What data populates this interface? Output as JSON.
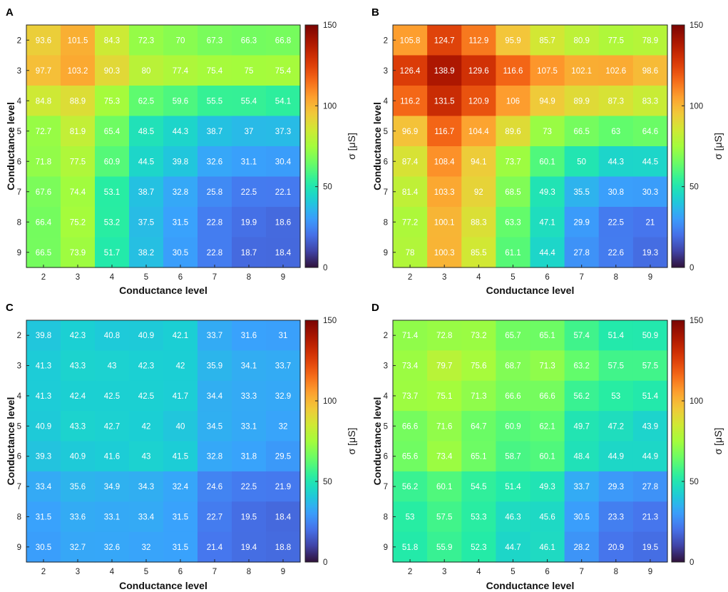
{
  "chart_data": [
    {
      "panel": "A",
      "type": "heatmap",
      "x_categories": [
        "2",
        "3",
        "4",
        "5",
        "6",
        "7",
        "8",
        "9"
      ],
      "y_categories": [
        "2",
        "3",
        "4",
        "5",
        "6",
        "7",
        "8",
        "9"
      ],
      "xlabel": "Conductance level",
      "ylabel": "Conductance level",
      "colorbar_label": "σ [μS]",
      "color_range": [
        0,
        150
      ],
      "colorbar_ticks": [
        0,
        50,
        100,
        150
      ],
      "values": [
        [
          93.6,
          101.5,
          84.3,
          72.3,
          70,
          67.3,
          66.3,
          66.8
        ],
        [
          97.7,
          103.2,
          90.3,
          80,
          77.4,
          75.4,
          75,
          75.4
        ],
        [
          84.8,
          88.9,
          75.3,
          62.5,
          59.6,
          55.5,
          55.4,
          54.1
        ],
        [
          72.7,
          81.9,
          65.4,
          48.5,
          44.3,
          38.7,
          37,
          37.3
        ],
        [
          71.8,
          77.5,
          60.9,
          44.5,
          39.8,
          32.6,
          31.1,
          30.4
        ],
        [
          67.6,
          74.4,
          53.1,
          38.7,
          32.8,
          25.8,
          22.5,
          22.1
        ],
        [
          66.4,
          75.2,
          53.2,
          37.5,
          31.5,
          22.8,
          19.9,
          18.6
        ],
        [
          66.5,
          73.9,
          51.7,
          38.2,
          30.5,
          22.8,
          18.7,
          18.4
        ]
      ]
    },
    {
      "panel": "B",
      "type": "heatmap",
      "x_categories": [
        "2",
        "3",
        "4",
        "5",
        "6",
        "7",
        "8",
        "9"
      ],
      "y_categories": [
        "2",
        "3",
        "4",
        "5",
        "6",
        "7",
        "8",
        "9"
      ],
      "xlabel": "Conductance level",
      "ylabel": "Conductance level",
      "colorbar_label": "σ [μS]",
      "color_range": [
        0,
        150
      ],
      "colorbar_ticks": [
        0,
        50,
        100,
        150
      ],
      "values": [
        [
          105.8,
          124.7,
          112.9,
          95.9,
          85.7,
          80.9,
          77.5,
          78.9
        ],
        [
          126.4,
          138.9,
          129.6,
          116.6,
          107.5,
          102.1,
          102.6,
          98.6
        ],
        [
          116.2,
          131.5,
          120.9,
          106,
          94.9,
          89.9,
          87.3,
          83.3
        ],
        [
          96.9,
          116.7,
          104.4,
          89.6,
          73,
          66.5,
          63,
          64.6
        ],
        [
          87.4,
          108.4,
          94.1,
          73.7,
          60.1,
          50,
          44.3,
          44.5
        ],
        [
          81.4,
          103.3,
          92,
          68.5,
          49.3,
          35.5,
          30.8,
          30.3
        ],
        [
          77.2,
          100.1,
          88.3,
          63.3,
          47.1,
          29.9,
          22.5,
          21
        ],
        [
          78,
          100.3,
          85.5,
          61.1,
          44.4,
          27.8,
          22.6,
          19.3
        ]
      ]
    },
    {
      "panel": "C",
      "type": "heatmap",
      "x_categories": [
        "2",
        "3",
        "4",
        "5",
        "6",
        "7",
        "8",
        "9"
      ],
      "y_categories": [
        "2",
        "3",
        "4",
        "5",
        "6",
        "7",
        "8",
        "9"
      ],
      "xlabel": "Conductance level",
      "ylabel": "Conductance level",
      "colorbar_label": "σ [μS]",
      "color_range": [
        0,
        150
      ],
      "colorbar_ticks": [
        0,
        50,
        100,
        150
      ],
      "values": [
        [
          39.8,
          42.3,
          40.8,
          40.9,
          42.1,
          33.7,
          31.6,
          31
        ],
        [
          41.3,
          43.3,
          43,
          42.3,
          42,
          35.9,
          34.1,
          33.7
        ],
        [
          41.3,
          42.4,
          42.5,
          42.5,
          41.7,
          34.4,
          33.3,
          32.9
        ],
        [
          40.9,
          43.3,
          42.7,
          42,
          40,
          34.5,
          33.1,
          32
        ],
        [
          39.3,
          40.9,
          41.6,
          43,
          41.5,
          32.8,
          31.8,
          29.5
        ],
        [
          33.4,
          35.6,
          34.9,
          34.3,
          32.4,
          24.6,
          22.5,
          21.9
        ],
        [
          31.5,
          33.6,
          33.1,
          33.4,
          31.5,
          22.7,
          19.5,
          18.4
        ],
        [
          30.5,
          32.7,
          32.6,
          32,
          31.5,
          21.4,
          19.4,
          18.8
        ]
      ]
    },
    {
      "panel": "D",
      "type": "heatmap",
      "x_categories": [
        "2",
        "3",
        "4",
        "5",
        "6",
        "7",
        "8",
        "9"
      ],
      "y_categories": [
        "2",
        "3",
        "4",
        "5",
        "6",
        "7",
        "8",
        "9"
      ],
      "xlabel": "Conductance level",
      "ylabel": "Conductance level",
      "colorbar_label": "σ [μS]",
      "color_range": [
        0,
        150
      ],
      "colorbar_ticks": [
        0,
        50,
        100,
        150
      ],
      "values": [
        [
          71.4,
          72.8,
          73.2,
          65.7,
          65.1,
          57.4,
          51.4,
          50.9
        ],
        [
          73.4,
          79.7,
          75.6,
          68.7,
          71.3,
          63.2,
          57.5,
          57.5
        ],
        [
          73.7,
          75.1,
          71.3,
          66.6,
          66.6,
          56.2,
          53,
          51.4
        ],
        [
          66.6,
          71.6,
          64.7,
          60.9,
          62.1,
          49.7,
          47.2,
          43.9
        ],
        [
          65.6,
          73.4,
          65.1,
          58.7,
          60.1,
          48.4,
          44.9,
          44.9
        ],
        [
          56.2,
          60.1,
          54.5,
          51.4,
          49.3,
          33.7,
          29.3,
          27.8
        ],
        [
          53,
          57.5,
          53.3,
          46.3,
          45.6,
          30.5,
          23.3,
          21.3
        ],
        [
          51.8,
          55.9,
          52.3,
          44.7,
          46.1,
          28.2,
          20.9,
          19.5
        ]
      ]
    }
  ]
}
